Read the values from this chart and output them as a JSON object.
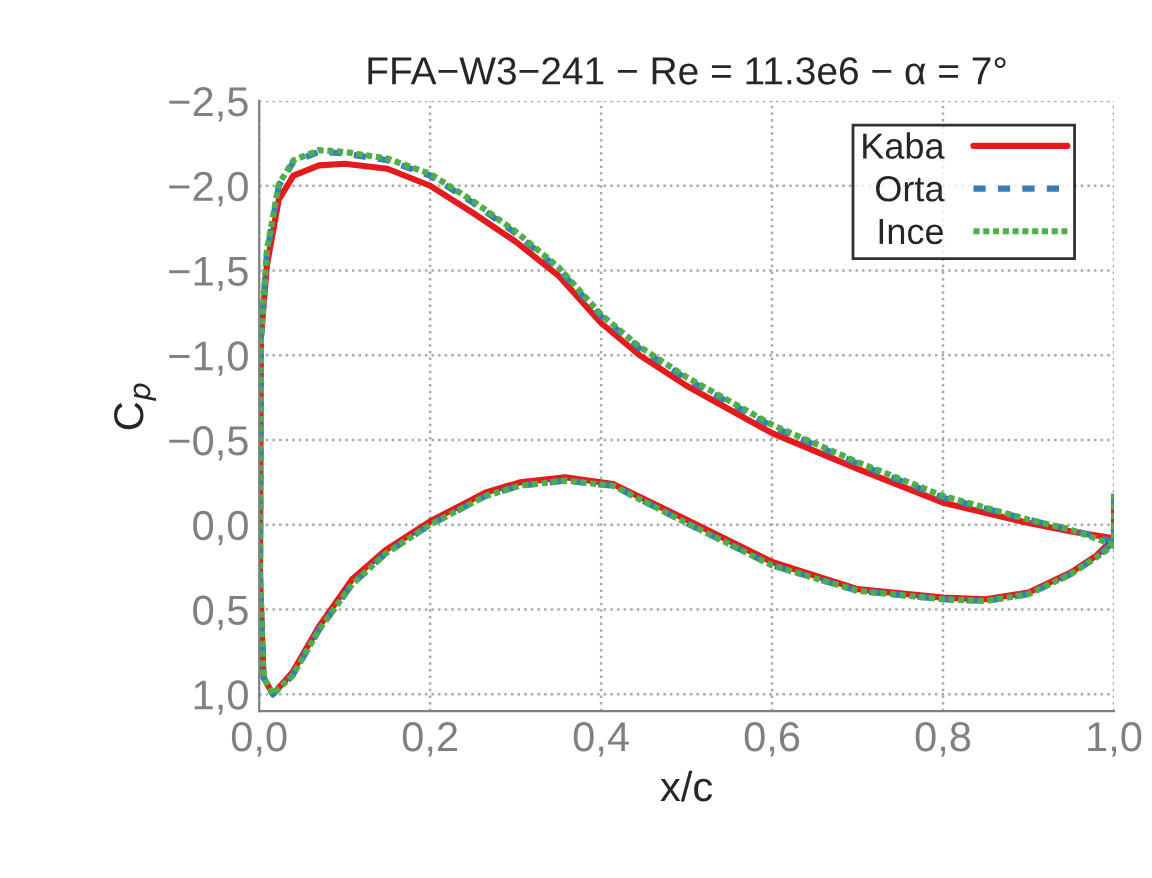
{
  "chart_data": {
    "type": "line",
    "title": "FFA−W3−241 − Re = 11.3e6 − α = 7°",
    "xlabel": "x/c",
    "ylabel": "C$_{p}$",
    "x": [
      1.0,
      0.95,
      0.9,
      0.8,
      0.7,
      0.6,
      0.5,
      0.445,
      0.4,
      0.35,
      0.3,
      0.25,
      0.2,
      0.15,
      0.1,
      0.07,
      0.04,
      0.023,
      0.009,
      0.002,
      0.001,
      0.005,
      0.016,
      0.039,
      0.07,
      0.109,
      0.148,
      0.2,
      0.265,
      0.305,
      0.358,
      0.414,
      0.5,
      0.6,
      0.7,
      0.8,
      0.85,
      0.9,
      0.95,
      0.98,
      1.0,
      1.0
    ],
    "series": [
      {
        "name": "Kaba",
        "color": "#e41a1c",
        "line_style": "solid",
        "values": [
          0.08,
          0.04,
          -0.01,
          -0.13,
          -0.33,
          -0.54,
          -0.82,
          -1.0,
          -1.19,
          -1.47,
          -1.67,
          -1.84,
          -2.0,
          -2.1,
          -2.13,
          -2.12,
          -2.06,
          -1.92,
          -1.53,
          -1.1,
          0.3,
          0.9,
          1.0,
          0.87,
          0.6,
          0.32,
          0.15,
          -0.02,
          -0.19,
          -0.25,
          -0.28,
          -0.24,
          -0.03,
          0.22,
          0.38,
          0.43,
          0.44,
          0.4,
          0.28,
          0.18,
          0.08,
          -0.11
        ]
      },
      {
        "name": "Orta",
        "color": "#377eb8",
        "line_style": "dashed",
        "values": [
          0.1,
          0.03,
          -0.03,
          -0.16,
          -0.36,
          -0.58,
          -0.86,
          -1.04,
          -1.23,
          -1.51,
          -1.72,
          -1.9,
          -2.06,
          -2.15,
          -2.19,
          -2.2,
          -2.14,
          -2.0,
          -1.6,
          -1.1,
          0.3,
          0.9,
          1.0,
          0.89,
          0.62,
          0.35,
          0.17,
          0.0,
          -0.17,
          -0.23,
          -0.26,
          -0.23,
          -0.01,
          0.24,
          0.39,
          0.44,
          0.45,
          0.41,
          0.29,
          0.19,
          0.1,
          -0.23
        ]
      },
      {
        "name": "Ince",
        "color": "#4daf4a",
        "line_style": "dotted",
        "values": [
          0.12,
          0.03,
          -0.03,
          -0.17,
          -0.37,
          -0.59,
          -0.87,
          -1.05,
          -1.24,
          -1.52,
          -1.73,
          -1.91,
          -2.07,
          -2.16,
          -2.2,
          -2.21,
          -2.15,
          -2.01,
          -1.62,
          -1.1,
          0.3,
          0.9,
          1.0,
          0.89,
          0.62,
          0.35,
          0.17,
          0.0,
          -0.17,
          -0.23,
          -0.26,
          -0.23,
          -0.01,
          0.24,
          0.39,
          0.44,
          0.45,
          0.41,
          0.29,
          0.19,
          0.12,
          -0.2
        ]
      }
    ],
    "xlim": [
      0,
      1
    ],
    "ylim": [
      1.1,
      -2.5
    ],
    "xticks": [
      {
        "value": 0,
        "label": "0,0"
      },
      {
        "value": 0.2,
        "label": "0,2"
      },
      {
        "value": 0.4,
        "label": "0,4"
      },
      {
        "value": 0.6,
        "label": "0,6"
      },
      {
        "value": 0.8,
        "label": "0,8"
      },
      {
        "value": 1,
        "label": "1,0"
      }
    ],
    "yticks": [
      {
        "value": -2.5,
        "label": "−2,5"
      },
      {
        "value": -2.0,
        "label": "−2,0"
      },
      {
        "value": -1.5,
        "label": "−1,5"
      },
      {
        "value": -1.0,
        "label": "−1,0"
      },
      {
        "value": -0.5,
        "label": "−0,5"
      },
      {
        "value": 0,
        "label": "0,0"
      },
      {
        "value": 0.5,
        "label": "0,5"
      },
      {
        "value": 1.0,
        "label": "1,0"
      }
    ],
    "grid": true,
    "legend": "top right"
  }
}
